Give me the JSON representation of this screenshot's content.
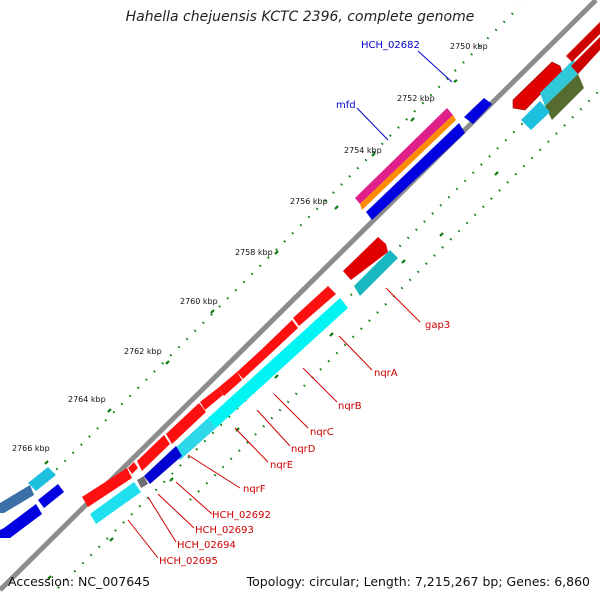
{
  "title": "Hahella chejuensis KCTC 2396, complete genome",
  "footer": {
    "accession": "Accession: NC_007645",
    "summary": "Topology: circular; Length: 7,215,267 bp; Genes: 6,860"
  },
  "colors": {
    "backbone": "#8c8c8c",
    "tick_minor": "#0a7a0a",
    "label_red": "#d00000",
    "label_blue": "#0000cc"
  },
  "ruler_labels": [
    "2750 kbp",
    "2752 kbp",
    "2754 kbp",
    "2756 kbp",
    "2758 kbp",
    "2760 kbp",
    "2762 kbp",
    "2764 kbp",
    "2766 kbp"
  ],
  "gene_labels_blue": [
    "HCH_02682",
    "mfd"
  ],
  "gene_labels_red": [
    "gap3",
    "nqrA",
    "nqrB",
    "nqrC",
    "nqrD",
    "nqrE",
    "nqrF",
    "HCH_02692",
    "HCH_02693",
    "HCH_02694",
    "HCH_02695"
  ]
}
